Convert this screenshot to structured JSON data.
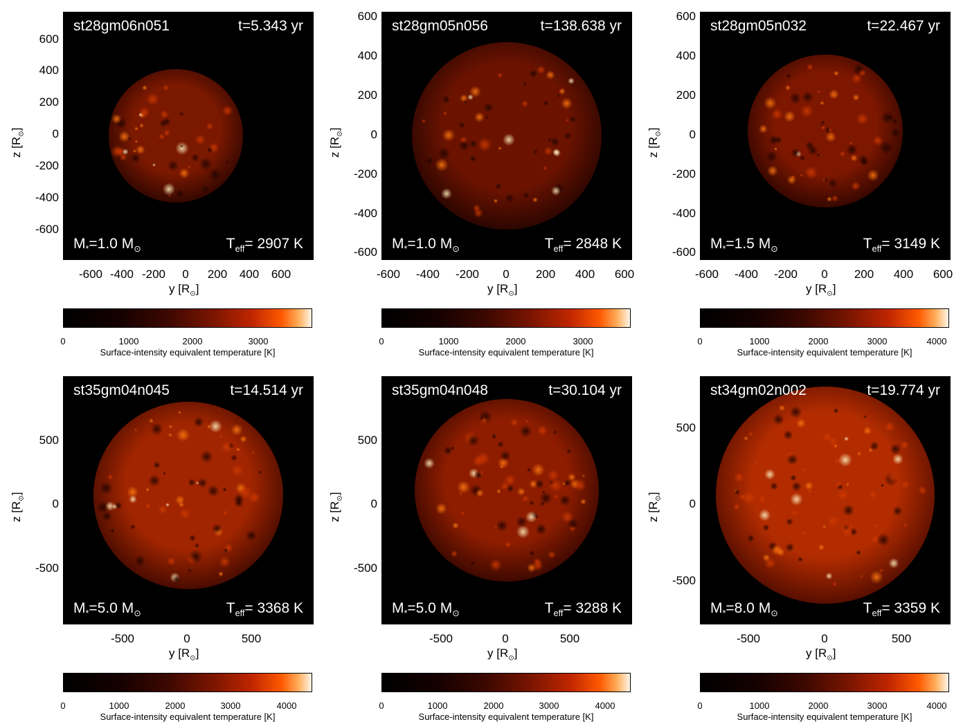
{
  "colorbar_label": "Surface-intensity equivalent temperature [K]",
  "y_axis_label": "z [R",
  "x_axis_label": "y [R",
  "sun_symbol": "⊙",
  "panels": [
    {
      "model": "st28gm06n051",
      "time": "t=5.343 yr",
      "mass_label": "M",
      "mass_value": "=1.0 M",
      "teff_label": "T",
      "teff_sub": "eff",
      "teff_value": "= 2907 K",
      "y_ticks": [
        "600",
        "400",
        "200",
        "0",
        "-200",
        "-400",
        "-600"
      ],
      "x_ticks": [
        "-600",
        "-400",
        "-200",
        "0",
        "200",
        "400",
        "600"
      ],
      "cbar_ticks": [
        "0",
        "1000",
        "2000",
        "3000"
      ]
    },
    {
      "model": "st28gm05n056",
      "time": "t=138.638 yr",
      "mass_label": "M",
      "mass_value": "=1.0 M",
      "teff_label": "T",
      "teff_sub": "eff",
      "teff_value": "= 2848 K",
      "y_ticks": [
        "600",
        "400",
        "200",
        "0",
        "-200",
        "-400",
        "-600"
      ],
      "x_ticks": [
        "-600",
        "-400",
        "-200",
        "0",
        "200",
        "400",
        "600"
      ],
      "cbar_ticks": [
        "0",
        "1000",
        "2000",
        "3000"
      ]
    },
    {
      "model": "st28gm05n032",
      "time": "t=22.467 yr",
      "mass_label": "M",
      "mass_value": "=1.5 M",
      "teff_label": "T",
      "teff_sub": "eff",
      "teff_value": "= 3149 K",
      "y_ticks": [
        "600",
        "400",
        "200",
        "0",
        "-200",
        "-400",
        "-600"
      ],
      "x_ticks": [
        "-600",
        "-400",
        "-200",
        "0",
        "200",
        "400",
        "600"
      ],
      "cbar_ticks": [
        "0",
        "1000",
        "2000",
        "3000",
        "4000"
      ]
    },
    {
      "model": "st35gm04n045",
      "time": "t=14.514 yr",
      "mass_label": "M",
      "mass_value": "=5.0 M",
      "teff_label": "T",
      "teff_sub": "eff",
      "teff_value": "= 3368 K",
      "y_ticks": [
        "500",
        "0",
        "-500"
      ],
      "x_ticks": [
        "-500",
        "0",
        "500"
      ],
      "cbar_ticks": [
        "0",
        "1000",
        "2000",
        "3000",
        "4000"
      ]
    },
    {
      "model": "st35gm04n048",
      "time": "t=30.104 yr",
      "mass_label": "M",
      "mass_value": "=5.0 M",
      "teff_label": "T",
      "teff_sub": "eff",
      "teff_value": "= 3288 K",
      "y_ticks": [
        "500",
        "0",
        "-500"
      ],
      "x_ticks": [
        "-500",
        "0",
        "500"
      ],
      "cbar_ticks": [
        "0",
        "1000",
        "2000",
        "3000",
        "4000"
      ]
    },
    {
      "model": "st34gm02n002",
      "time": "t=19.774 yr",
      "mass_label": "M",
      "mass_value": "=8.0 M",
      "teff_label": "T",
      "teff_sub": "eff",
      "teff_value": "= 3359 K",
      "y_ticks": [
        "500",
        "0",
        "-500"
      ],
      "x_ticks": [
        "-500",
        "0",
        "500"
      ],
      "cbar_ticks": [
        "0",
        "1000",
        "2000",
        "3000",
        "4000"
      ]
    }
  ]
}
